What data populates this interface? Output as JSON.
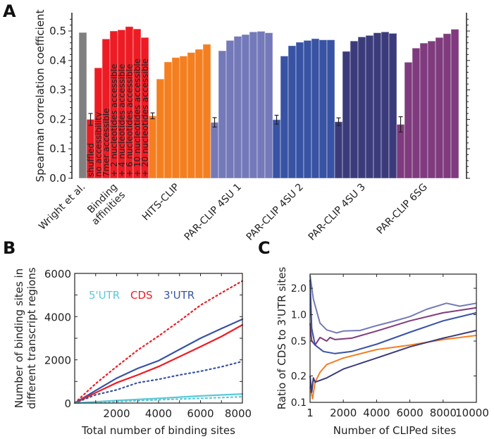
{
  "panels": {
    "a": "A",
    "b": "B",
    "c": "C"
  },
  "chart_data": [
    {
      "type": "bar",
      "panel": "A",
      "ylabel": "Spearman correlation coefficient",
      "ylim": [
        0,
        0.55
      ],
      "yticks": [
        "0.0",
        "0.1",
        "0.2",
        "0.3",
        "0.4",
        "0.5"
      ],
      "grid": false,
      "bar_labels": [
        "shuffled",
        "no accessibility",
        "7mer accessible",
        "+ 2 nucleotides accessible",
        "+ 4 nucleotides accessible",
        "+ 6 nucleotides accessible",
        "+ 10 nucleotides accessible",
        "+ 20 nucleotides accessible"
      ],
      "groups": [
        {
          "label": "Wright et al.",
          "color": "#808080",
          "values": [
            0.495
          ],
          "errors": [
            null
          ]
        },
        {
          "label": "Binding\naffinities",
          "color": "#ed1c24",
          "values": [
            0.2,
            0.375,
            0.473,
            0.5,
            0.504,
            0.515,
            0.507,
            0.478
          ],
          "errors": [
            0.02,
            null,
            null,
            null,
            null,
            null,
            null,
            null
          ]
        },
        {
          "label": "HITS-CLIP",
          "color": "#f47f20",
          "values": [
            0.212,
            0.337,
            0.395,
            0.41,
            0.415,
            0.427,
            0.438,
            0.455
          ],
          "errors": [
            0.01,
            null,
            null,
            null,
            null,
            null,
            null,
            null
          ]
        },
        {
          "label": "PAR-CLIP 4SU 1",
          "color": "#7479b9",
          "values": [
            0.19,
            0.433,
            0.468,
            0.482,
            0.488,
            0.497,
            0.499,
            0.494
          ],
          "errors": [
            0.016,
            null,
            null,
            null,
            null,
            null,
            null,
            null
          ]
        },
        {
          "label": "PAR-CLIP 4SU 2",
          "color": "#3853a4",
          "values": [
            0.199,
            0.415,
            0.45,
            0.462,
            0.468,
            0.474,
            0.47,
            0.47
          ],
          "errors": [
            0.015,
            null,
            null,
            null,
            null,
            null,
            null,
            null
          ]
        },
        {
          "label": "PAR-CLIP 4SU 3",
          "color": "#3b3b7c",
          "values": [
            0.192,
            0.431,
            0.466,
            0.48,
            0.485,
            0.494,
            0.497,
            0.492
          ],
          "errors": [
            0.013,
            null,
            null,
            null,
            null,
            null,
            null,
            null
          ]
        },
        {
          "label": "PAR-CLIP 6SG",
          "color": "#7f3b7e",
          "values": [
            0.183,
            0.394,
            0.442,
            0.459,
            0.466,
            0.478,
            0.491,
            0.506
          ],
          "errors": [
            0.026,
            null,
            null,
            null,
            null,
            null,
            null,
            null
          ]
        }
      ]
    },
    {
      "type": "line",
      "panel": "B",
      "xlabel": "Total number of binding sites",
      "ylabel": "Number of binding sites in\ndifferent transcript regions",
      "xlim": [
        0,
        8000
      ],
      "ylim": [
        0,
        6000
      ],
      "xticks": [
        "2000",
        "4000",
        "6000",
        "8000"
      ],
      "yticks": [
        "0",
        "2000",
        "4000",
        "6000"
      ],
      "legend": {
        "placement": "top-left",
        "entries": [
          {
            "name": "5'UTR",
            "color": "#5bc8d8"
          },
          {
            "name": "CDS",
            "color": "#ed1c24"
          },
          {
            "name": "3'UTR",
            "color": "#3853a4"
          }
        ]
      },
      "series": [
        {
          "region": "CDS",
          "style": "dotted",
          "color": "#ed1c24",
          "x": [
            0,
            1000,
            2000,
            3000,
            4000,
            5000,
            6000,
            7000,
            8000
          ],
          "y": [
            0,
            900,
            1690,
            2450,
            3100,
            3800,
            4530,
            5100,
            5650
          ]
        },
        {
          "region": "3'UTR",
          "style": "solid",
          "color": "#3853a4",
          "x": [
            0,
            1000,
            2000,
            3000,
            4000,
            5000,
            6000,
            7000,
            8000
          ],
          "y": [
            0,
            580,
            1150,
            1600,
            1960,
            2480,
            3000,
            3450,
            3880
          ]
        },
        {
          "region": "CDS",
          "style": "solid",
          "color": "#ed1c24",
          "x": [
            0,
            1000,
            2000,
            3000,
            4000,
            5000,
            6000,
            7000,
            8000
          ],
          "y": [
            0,
            480,
            940,
            1300,
            1690,
            2150,
            2610,
            3080,
            3620
          ]
        },
        {
          "region": "3'UTR",
          "style": "dotted",
          "color": "#3853a4",
          "x": [
            0,
            1000,
            2000,
            3000,
            4000,
            5000,
            6000,
            7000,
            8000
          ],
          "y": [
            0,
            380,
            610,
            940,
            1100,
            1300,
            1470,
            1680,
            1930
          ]
        },
        {
          "region": "5'UTR",
          "style": "solid",
          "color": "#5bc8d8",
          "x": [
            0,
            2000,
            4000,
            6000,
            8000
          ],
          "y": [
            0,
            120,
            220,
            330,
            420
          ]
        },
        {
          "region": "5'UTR",
          "style": "dotted",
          "color": "#5bc8d8",
          "x": [
            0,
            2000,
            4000,
            6000,
            8000
          ],
          "y": [
            0,
            70,
            150,
            220,
            290
          ]
        }
      ]
    },
    {
      "type": "line",
      "panel": "C",
      "xlabel": "Number of CLIPed sites",
      "ylabel": "Ratio of CDS to 3'UTR sites",
      "xlim": [
        1,
        10000
      ],
      "ylim": [
        0.1,
        2.9
      ],
      "yscale": "log",
      "xticks": [
        "1",
        "2000",
        "4000",
        "6000",
        "8000",
        "10000"
      ],
      "yticks": [
        "0.1",
        "0.2",
        "0.5",
        "1.0",
        "2.0"
      ],
      "series": [
        {
          "dataset": "PAR-CLIP 4SU 1",
          "color": "#7479b9",
          "x": [
            1,
            200,
            600,
            1000,
            1600,
            2000,
            3000,
            4000,
            5000,
            6000,
            7000,
            8200,
            9000,
            10000
          ],
          "y": [
            2.8,
            1.5,
            0.8,
            0.67,
            0.62,
            0.65,
            0.66,
            0.75,
            0.84,
            0.95,
            1.15,
            1.35,
            1.25,
            1.35
          ]
        },
        {
          "dataset": "PAR-CLIP 6SG",
          "color": "#7f3b7e",
          "x": [
            1,
            100,
            300,
            600,
            1000,
            1200,
            1500,
            2500,
            4000,
            6000,
            8000,
            10000
          ],
          "y": [
            0.8,
            0.5,
            0.45,
            0.55,
            0.5,
            0.55,
            0.52,
            0.54,
            0.65,
            0.85,
            1.05,
            1.2
          ]
        },
        {
          "dataset": "PAR-CLIP 4SU 2",
          "color": "#3853a4",
          "x": [
            1,
            100,
            300,
            800,
            1500,
            2500,
            4000,
            6000,
            8000,
            10000
          ],
          "y": [
            2.5,
            0.7,
            0.45,
            0.38,
            0.36,
            0.38,
            0.46,
            0.63,
            0.85,
            1.05
          ]
        },
        {
          "dataset": "HITS-CLIP",
          "color": "#f47f20",
          "x": [
            1,
            150,
            300,
            600,
            1000,
            2000,
            4000,
            6000,
            8000,
            10000
          ],
          "y": [
            0.15,
            0.11,
            0.17,
            0.22,
            0.27,
            0.32,
            0.4,
            0.45,
            0.52,
            0.58
          ]
        },
        {
          "dataset": "PAR-CLIP 4SU 3",
          "color": "#3b3b7c",
          "x": [
            1,
            100,
            200,
            300,
            1000,
            2000,
            4000,
            6000,
            8000,
            10000
          ],
          "y": [
            0.2,
            0.13,
            0.19,
            0.17,
            0.19,
            0.24,
            0.32,
            0.43,
            0.54,
            0.66
          ]
        }
      ]
    }
  ]
}
